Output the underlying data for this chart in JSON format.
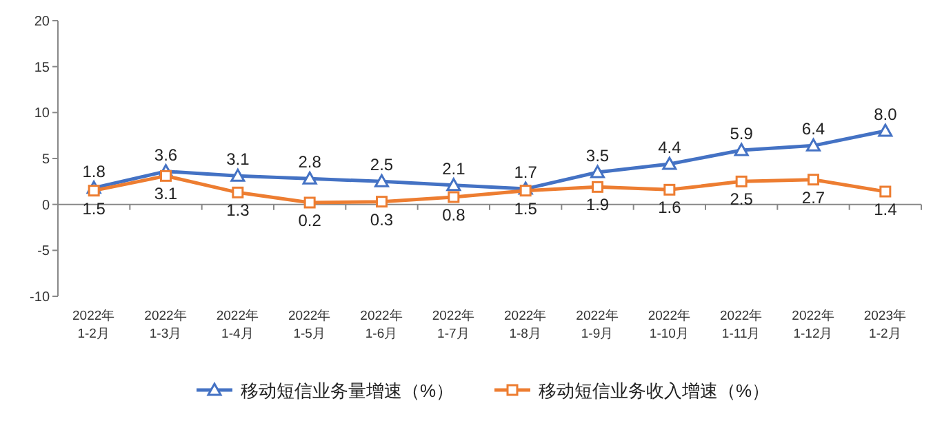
{
  "chart_data": {
    "type": "line",
    "categories": [
      "2022年\n1-2月",
      "2022年\n1-3月",
      "2022年\n1-4月",
      "2022年\n1-5月",
      "2022年\n1-6月",
      "2022年\n1-7月",
      "2022年\n1-8月",
      "2022年\n1-9月",
      "2022年\n1-10月",
      "2022年\n1-11月",
      "2022年\n1-12月",
      "2023年\n1-2月"
    ],
    "series": [
      {
        "name": "移动短信业务量增速（%）",
        "color": "#4472c4",
        "marker": "triangle",
        "values": [
          1.8,
          3.6,
          3.1,
          2.8,
          2.5,
          2.1,
          1.7,
          3.5,
          4.4,
          5.9,
          6.4,
          8.0
        ],
        "value_labels": [
          "1.8",
          "3.6",
          "3.1",
          "2.8",
          "2.5",
          "2.1",
          "1.7",
          "3.5",
          "4.4",
          "5.9",
          "6.4",
          "8.0"
        ]
      },
      {
        "name": "移动短信业务收入增速（%）",
        "color": "#ed7d31",
        "marker": "square",
        "values": [
          1.5,
          3.1,
          1.3,
          0.2,
          0.3,
          0.8,
          1.5,
          1.9,
          1.6,
          2.5,
          2.7,
          1.4
        ],
        "value_labels": [
          "1.5",
          "3.1",
          "1.3",
          "0.2",
          "0.3",
          "0.8",
          "1.5",
          "1.9",
          "1.6",
          "2.5",
          "2.7",
          "1.4"
        ]
      }
    ],
    "ylim": [
      -10,
      20
    ],
    "yticks": [
      -10,
      -5,
      0,
      5,
      10,
      15,
      20
    ],
    "legend": "bottom",
    "line_style": "solid"
  }
}
